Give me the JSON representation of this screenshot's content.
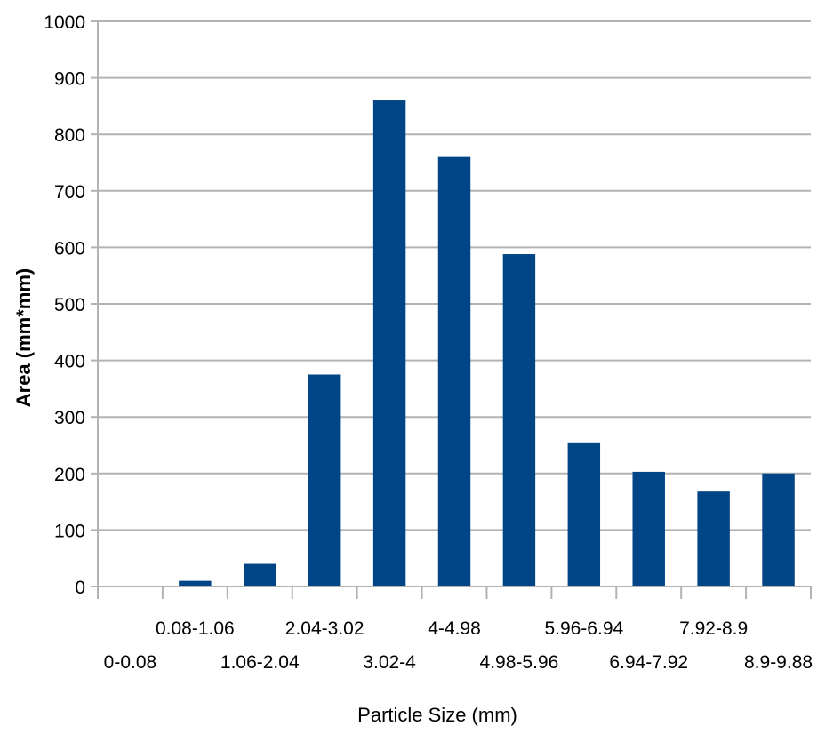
{
  "chart_data": {
    "type": "bar",
    "title": "",
    "xlabel": "Particle Size (mm)",
    "ylabel": "Area (mm*mm)",
    "ylim": [
      0,
      1000
    ],
    "yticks": [
      "0",
      "100",
      "200",
      "300",
      "400",
      "500",
      "600",
      "700",
      "800",
      "900",
      "1000"
    ],
    "grid": true,
    "legend": "none",
    "categories": [
      "0-0.08",
      "0.08-1.06",
      "1.06-2.04",
      "2.04-3.02",
      "3.02-4",
      "4-4.98",
      "4.98-5.96",
      "5.96-6.94",
      "6.94-7.92",
      "7.92-8.9",
      "8.9-9.88"
    ],
    "values": [
      0,
      10,
      40,
      375,
      860,
      760,
      588,
      255,
      203,
      168,
      200
    ],
    "bar_color": "#004586"
  }
}
